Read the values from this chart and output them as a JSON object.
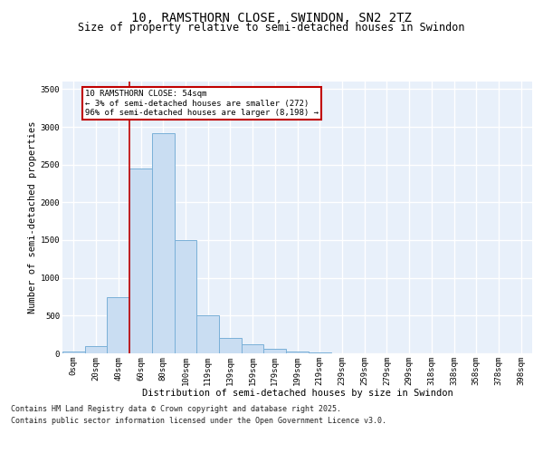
{
  "title_line1": "10, RAMSTHORN CLOSE, SWINDON, SN2 2TZ",
  "title_line2": "Size of property relative to semi-detached houses in Swindon",
  "xlabel": "Distribution of semi-detached houses by size in Swindon",
  "ylabel": "Number of semi-detached properties",
  "categories": [
    "0sqm",
    "20sqm",
    "40sqm",
    "60sqm",
    "80sqm",
    "100sqm",
    "119sqm",
    "139sqm",
    "159sqm",
    "179sqm",
    "199sqm",
    "219sqm",
    "239sqm",
    "259sqm",
    "279sqm",
    "299sqm",
    "318sqm",
    "338sqm",
    "358sqm",
    "378sqm",
    "398sqm"
  ],
  "values": [
    30,
    100,
    750,
    2450,
    2920,
    1500,
    500,
    210,
    120,
    60,
    28,
    8,
    5,
    3,
    2,
    1,
    1,
    0,
    0,
    0,
    0
  ],
  "bar_color": "#c9ddf2",
  "bar_edge_color": "#7ab0d8",
  "vline_x_index": 3,
  "vline_color": "#c00000",
  "annotation_text": "10 RAMSTHORN CLOSE: 54sqm\n← 3% of semi-detached houses are smaller (272)\n96% of semi-detached houses are larger (8,198) →",
  "annotation_box_color": "#c00000",
  "ylim": [
    0,
    3600
  ],
  "yticks": [
    0,
    500,
    1000,
    1500,
    2000,
    2500,
    3000,
    3500
  ],
  "background_color": "#e8f0fa",
  "grid_color": "#ffffff",
  "footer_line1": "Contains HM Land Registry data © Crown copyright and database right 2025.",
  "footer_line2": "Contains public sector information licensed under the Open Government Licence v3.0.",
  "title_fontsize": 10,
  "subtitle_fontsize": 8.5,
  "tick_fontsize": 6.5,
  "label_fontsize": 7.5,
  "footer_fontsize": 6.0,
  "annot_fontsize": 6.5
}
